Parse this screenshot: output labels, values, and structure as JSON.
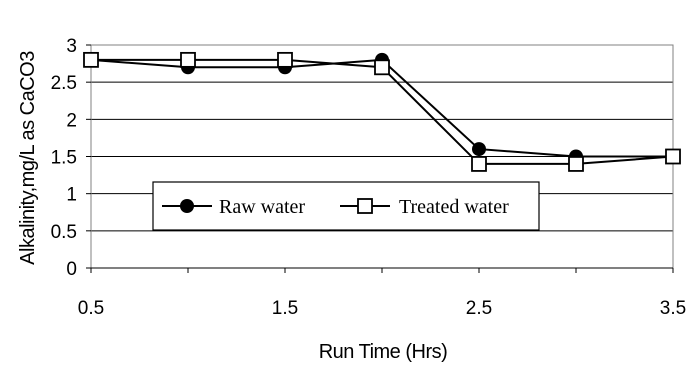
{
  "chart_data": {
    "type": "line",
    "title": "",
    "xlabel": "Run Time (Hrs)",
    "ylabel": "Alkalinity,mg/L as CaCO3",
    "xlim": [
      0.5,
      3.5
    ],
    "ylim": [
      0,
      3
    ],
    "xticks": [
      "0.5",
      "1.5",
      "2.5",
      "3.5"
    ],
    "yticks": [
      "0",
      "0.5",
      "1",
      "1.5",
      "2",
      "2.5",
      "3"
    ],
    "grid": "horizontal",
    "legend_position": "center-left",
    "x": [
      0.5,
      1,
      1.5,
      2,
      2.5,
      3,
      3.5
    ],
    "series": [
      {
        "name": "Raw water",
        "marker": "filled-circle",
        "color": "#000000",
        "values": [
          2.8,
          2.7,
          2.7,
          2.8,
          1.6,
          1.5,
          1.5
        ]
      },
      {
        "name": "Treated water",
        "marker": "open-square",
        "color": "#000000",
        "values": [
          2.8,
          2.8,
          2.8,
          2.7,
          1.4,
          1.4,
          1.5
        ]
      }
    ]
  }
}
